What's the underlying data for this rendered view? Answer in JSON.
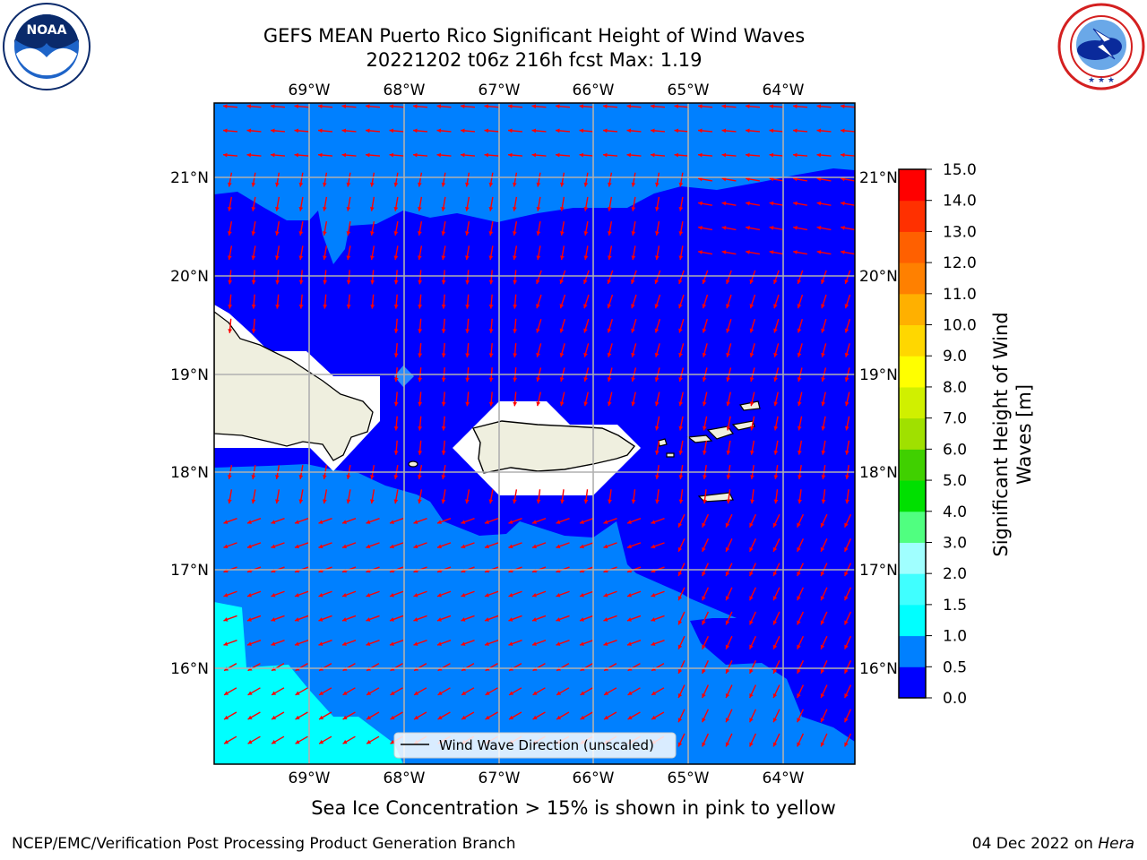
{
  "title_line1": "GEFS MEAN Puerto Rico Significant Height of Wind Waves",
  "title_line2": "20221202 t06z 216h fcst   Max: 1.19",
  "logos": {
    "left": {
      "icon": "noaa-logo",
      "text": "NOAA"
    },
    "right": {
      "icon": "national-weather-service-logo"
    }
  },
  "map": {
    "lon_ticks": [
      "69°W",
      "68°W",
      "67°W",
      "66°W",
      "65°W",
      "64°W"
    ],
    "lat_ticks": [
      "21°N",
      "20°N",
      "19°N",
      "18°N",
      "17°N",
      "16°N"
    ],
    "legend_label": "Wind Wave Direction (unscaled)",
    "arrow_color": "#ff0000"
  },
  "colorbar": {
    "label_line1": "Significant Height of Wind",
    "label_line2": "Waves [m]",
    "ticks": [
      "0.0",
      "0.5",
      "1.0",
      "1.5",
      "2.0",
      "3.0",
      "4.0",
      "5.0",
      "6.0",
      "7.0",
      "8.0",
      "9.0",
      "10.0",
      "11.0",
      "12.0",
      "13.0",
      "14.0",
      "15.0"
    ],
    "colors": [
      "#0000ff",
      "#0080ff",
      "#00ffff",
      "#40ffff",
      "#a0ffff",
      "#50ff80",
      "#00e000",
      "#40d000",
      "#a0e000",
      "#d0f000",
      "#ffff00",
      "#ffd700",
      "#ffb000",
      "#ff8000",
      "#ff6000",
      "#ff3000",
      "#ff0000"
    ]
  },
  "subtitle": "Sea Ice Concentration > 15% is shown in pink to yellow",
  "footer_left": "NCEP/EMC/Verification Post Processing Product Generation Branch",
  "footer_date": "04 Dec 2022 on ",
  "footer_machine": "Hera"
}
